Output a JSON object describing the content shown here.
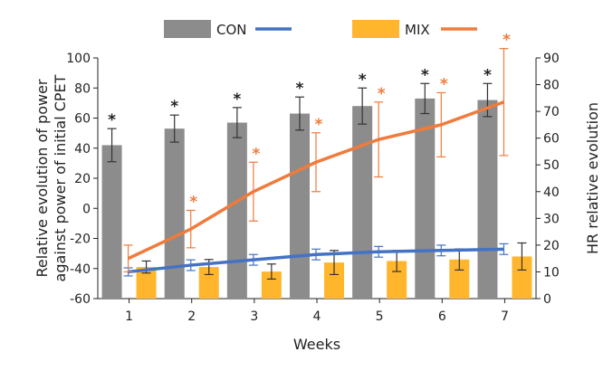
{
  "chart_data": {
    "type": "bar",
    "xlabel": "Weeks",
    "ylabel_left": [
      "Relative evolution of power",
      "against power of initial CPET"
    ],
    "ylabel_right": "HR relative evolution",
    "categories": [
      "1",
      "2",
      "3",
      "4",
      "5",
      "6",
      "7"
    ],
    "ylim_left": [
      -60,
      100
    ],
    "yticks_left": [
      -60,
      -40,
      -20,
      0,
      20,
      40,
      60,
      80,
      100
    ],
    "ylim_right": [
      0,
      90
    ],
    "yticks_right": [
      0,
      10,
      20,
      30,
      40,
      50,
      60,
      70,
      80,
      90
    ],
    "legend": [
      {
        "key": "con_bar",
        "label": "CON",
        "kind": "bar",
        "color": "#8c8c8c"
      },
      {
        "key": "con_line",
        "label": "",
        "kind": "line",
        "color": "#4472c4"
      },
      {
        "key": "mix_bar",
        "label": "MIX",
        "kind": "bar",
        "color": "#ffb62c"
      },
      {
        "key": "mix_line",
        "label": "",
        "kind": "line",
        "color": "#ef7b3c"
      }
    ],
    "series": [
      {
        "name": "CON",
        "type": "bar",
        "axis": "left",
        "color": "#8c8c8c",
        "values": [
          42,
          53,
          57,
          63,
          68,
          73,
          72
        ],
        "err": [
          11,
          9,
          10,
          11,
          12,
          10,
          11
        ],
        "markers": [
          "*",
          "*",
          "*",
          "*",
          "*",
          "*",
          "*"
        ],
        "marker_color": "#111111"
      },
      {
        "name": "MIX",
        "type": "bar",
        "axis": "left",
        "color": "#ffb62c",
        "values": [
          -39,
          -39,
          -42,
          -36,
          -35,
          -34,
          -32
        ],
        "err": [
          4,
          5,
          5,
          8,
          7,
          7,
          9
        ],
        "markers": [
          "",
          "",
          "",
          "",
          "",
          "",
          ""
        ],
        "marker_color": "#ef7b3c"
      },
      {
        "name": "CON",
        "type": "line",
        "axis": "right",
        "color": "#4472c4",
        "values": [
          10,
          12.5,
          14.5,
          16.5,
          17.5,
          18,
          18.5
        ],
        "err": [
          1.5,
          2,
          2,
          2,
          2,
          2,
          2
        ]
      },
      {
        "name": "MIX",
        "type": "line",
        "axis": "right",
        "color": "#ef7b3c",
        "values": [
          15,
          26,
          40,
          51,
          59.5,
          65,
          73.5
        ],
        "err": [
          5,
          7,
          11,
          11,
          14,
          12,
          20
        ],
        "markers": [
          "",
          "*",
          "*",
          "*",
          "*",
          "*",
          "*"
        ],
        "marker_color": "#ef7b3c"
      }
    ]
  }
}
